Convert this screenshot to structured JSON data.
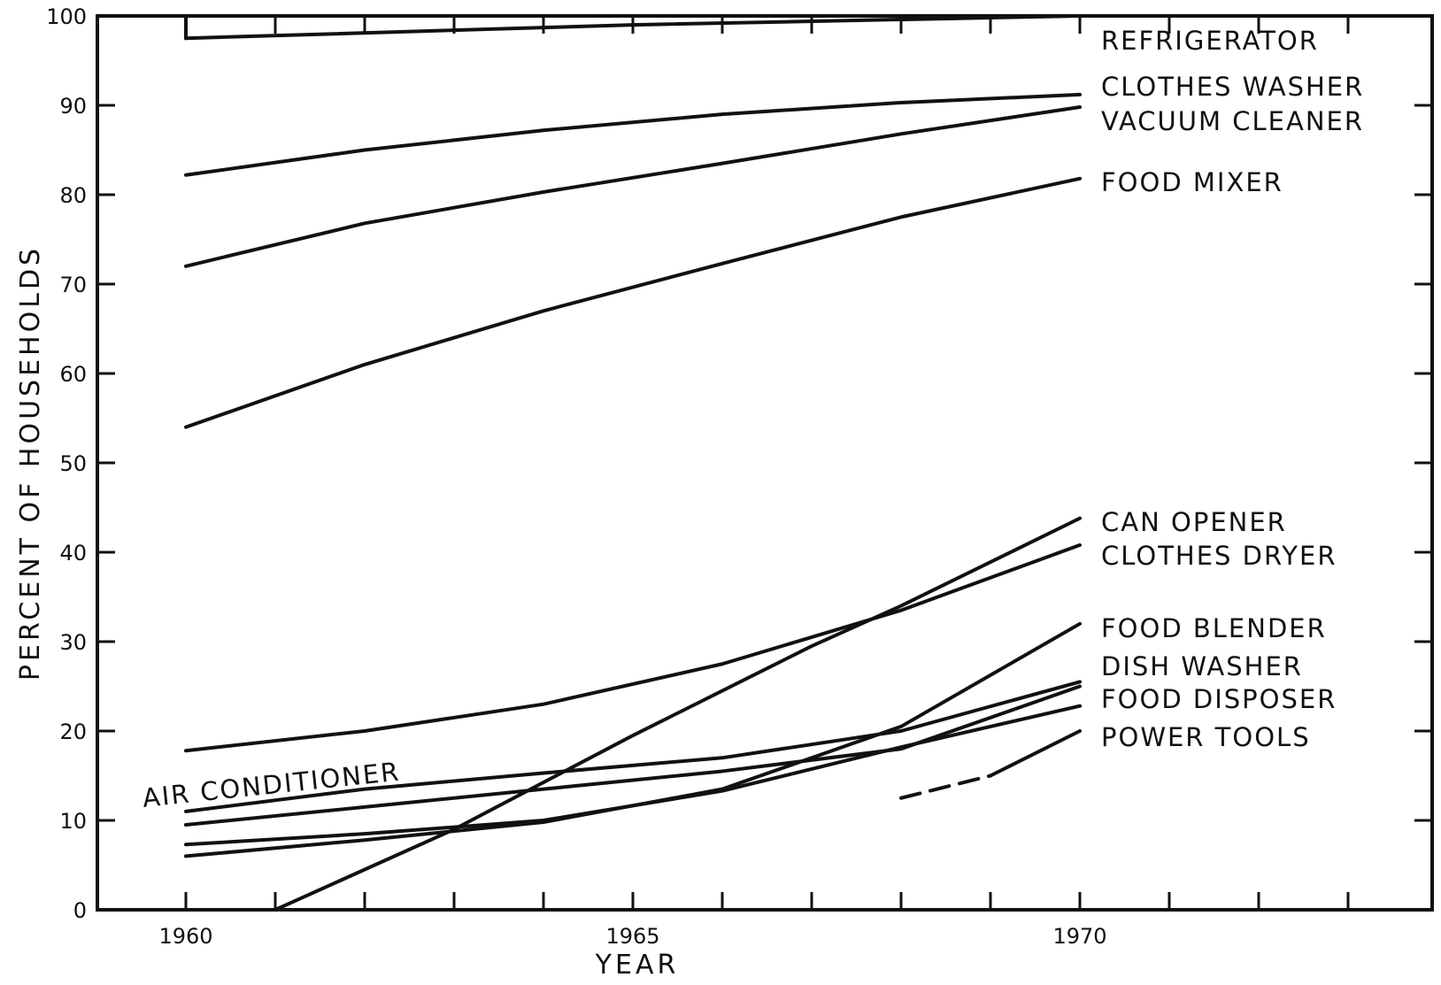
{
  "chart_data": {
    "type": "line",
    "title": "",
    "xlabel": "YEAR",
    "ylabel": "PERCENT OF HOUSEHOLDS",
    "xlim": [
      1959,
      1973.9
    ],
    "ylim": [
      0,
      100
    ],
    "x_ticks": [
      1960,
      1965,
      1970
    ],
    "y_ticks": [
      0,
      10,
      20,
      30,
      40,
      50,
      60,
      70,
      80,
      90,
      100
    ],
    "grid": false,
    "legend": "labels at right ends of lines",
    "series": [
      {
        "name": "REFRIGERATOR",
        "x": [
          1960,
          1965,
          1970
        ],
        "y": [
          97.5,
          99.0,
          100.0
        ]
      },
      {
        "name": "CLOTHES WASHER",
        "x": [
          1960,
          1962,
          1964,
          1966,
          1968,
          1970
        ],
        "y": [
          82.2,
          85.0,
          87.2,
          89.0,
          90.3,
          91.2
        ]
      },
      {
        "name": "VACUUM CLEANER",
        "x": [
          1960,
          1962,
          1964,
          1966,
          1968,
          1970
        ],
        "y": [
          72.0,
          76.8,
          80.3,
          83.5,
          86.8,
          89.8
        ]
      },
      {
        "name": "FOOD MIXER",
        "x": [
          1960,
          1962,
          1964,
          1966,
          1968,
          1970
        ],
        "y": [
          54.0,
          61.0,
          67.0,
          72.3,
          77.5,
          81.8
        ]
      },
      {
        "name": "CAN OPENER",
        "x": [
          1961,
          1963,
          1965,
          1967,
          1968,
          1970
        ],
        "y": [
          0.0,
          9.0,
          19.5,
          29.5,
          34.0,
          43.8
        ]
      },
      {
        "name": "CLOTHES DRYER",
        "x": [
          1960,
          1962,
          1964,
          1966,
          1968,
          1970
        ],
        "y": [
          17.8,
          20.0,
          23.0,
          27.5,
          33.5,
          40.8
        ]
      },
      {
        "name": "FOOD BLENDER",
        "x": [
          1960,
          1962,
          1964,
          1966,
          1968,
          1970
        ],
        "y": [
          6.0,
          7.8,
          9.8,
          13.5,
          20.5,
          32.0
        ]
      },
      {
        "name": "DISH WASHER",
        "x": [
          1960,
          1962,
          1964,
          1966,
          1968,
          1970
        ],
        "y": [
          9.5,
          11.5,
          13.5,
          15.5,
          18.0,
          25.0
        ]
      },
      {
        "name": "FOOD DISPOSER",
        "x": [
          1960,
          1962,
          1964,
          1966,
          1968,
          1970
        ],
        "y": [
          7.3,
          8.5,
          10.0,
          13.3,
          18.2,
          22.8
        ]
      },
      {
        "name": "AIR CONDITIONER",
        "x": [
          1960,
          1962,
          1964,
          1966,
          1968,
          1970
        ],
        "y": [
          11.0,
          13.5,
          15.3,
          17.0,
          20.0,
          25.5
        ]
      },
      {
        "name": "POWER TOOLS",
        "x": [
          1968,
          1969,
          1970
        ],
        "y": [
          12.5,
          15.0,
          20.0
        ],
        "dashed_until": 1969
      }
    ]
  }
}
